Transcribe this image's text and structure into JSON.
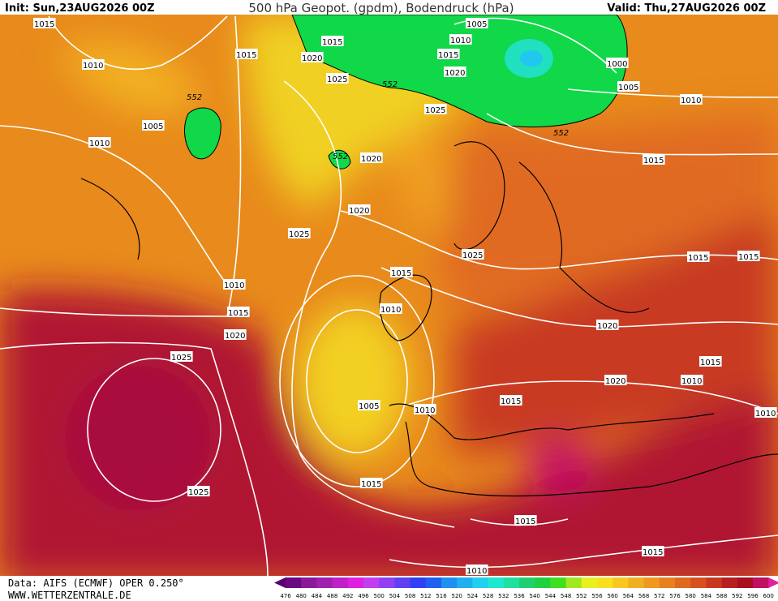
{
  "header": {
    "init": "Init: Sun,23AUG2026 00Z",
    "title": "500 hPa Geopot. (gpdm), Bodendruck (hPa)",
    "valid": "Valid: Thu,27AUG2026 00Z"
  },
  "isobar_labels": [
    "1015",
    "1005",
    "1015",
    "1010",
    "1015",
    "1020",
    "1015",
    "1020",
    "1000",
    "1010",
    "1025",
    "552",
    "1005",
    "552",
    "1010",
    "1025",
    "1005",
    "552",
    "1010",
    "552",
    "1020",
    "1015",
    "1020",
    "1025",
    "1025",
    "1015",
    "1015",
    "1015",
    "1010",
    "1010",
    "1015",
    "1020",
    "1020",
    "1025",
    "1015",
    "1020",
    "1010",
    "1005",
    "1015",
    "1010",
    "1010",
    "1015",
    "1025",
    "1015",
    "1015",
    "1010"
  ],
  "footer": {
    "source": "Data: AIFS (ECMWF) OPER 0.250°",
    "website": "WWW.WETTERZENTRALE.DE"
  },
  "colorbar": {
    "values": [
      476,
      480,
      484,
      488,
      492,
      496,
      500,
      504,
      508,
      512,
      516,
      520,
      524,
      528,
      532,
      536,
      540,
      544,
      548,
      552,
      556,
      560,
      564,
      568,
      572,
      576,
      580,
      584,
      588,
      592,
      596,
      600
    ],
    "colors": [
      "#5a0070",
      "#6a0a80",
      "#8a1a9a",
      "#a020b0",
      "#c020c8",
      "#e020e0",
      "#c040f0",
      "#9040f0",
      "#6040f0",
      "#3040f0",
      "#2060f0",
      "#2090f0",
      "#20b0f0",
      "#20d0f0",
      "#20e8d0",
      "#20e0a0",
      "#20d070",
      "#20d040",
      "#40e020",
      "#a0e820",
      "#e8f020",
      "#f8e020",
      "#f8c820",
      "#f0b020",
      "#f09820",
      "#e88020",
      "#e06820",
      "#d85020",
      "#c83820",
      "#b82020",
      "#a81020",
      "#c01060",
      "#e020a0"
    ]
  }
}
